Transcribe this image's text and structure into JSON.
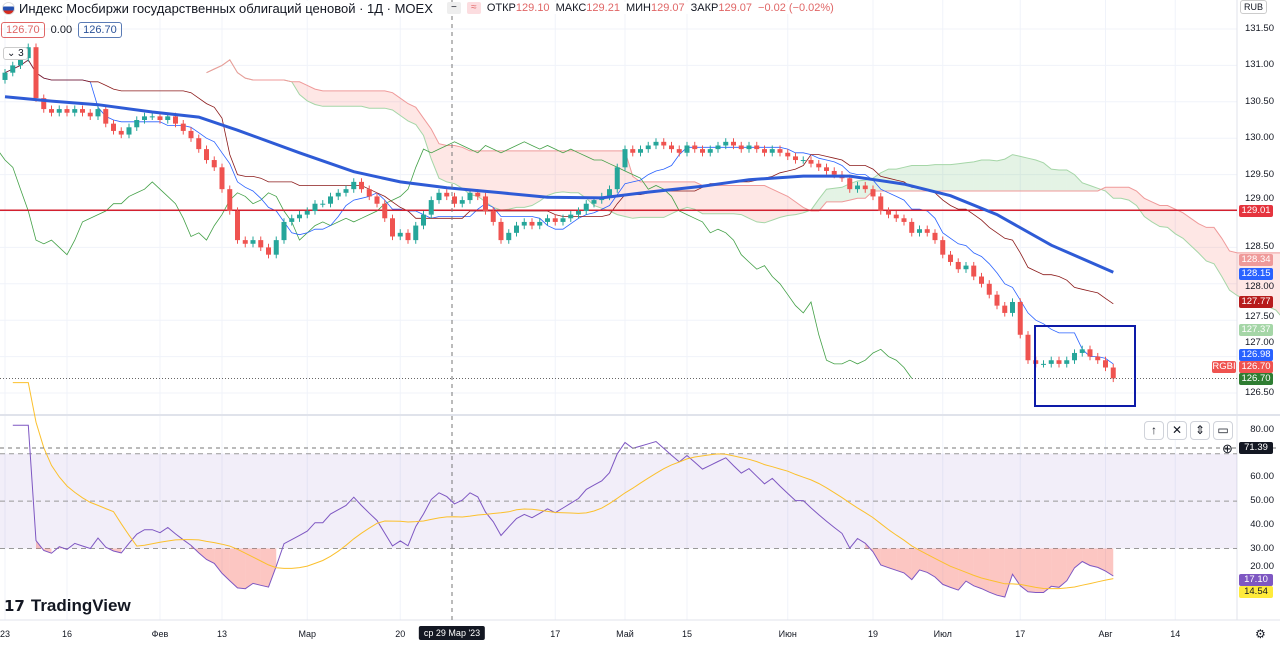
{
  "header": {
    "title": "Индекс Мосбиржи государственных облигаций ценовой · 1Д · MOEX",
    "ohlc": [
      {
        "k": "ОТКР",
        "v": "129.10"
      },
      {
        "k": "МАКС",
        "v": "129.21"
      },
      {
        "k": "МИН",
        "v": "129.07"
      },
      {
        "k": "ЗАКР",
        "v": "129.07"
      }
    ],
    "change": "−0.02 (−0.02%)",
    "sell": "126.70",
    "spread": "0.00",
    "buy": "126.70",
    "indicators_count": "3",
    "currency": "RUB"
  },
  "colors": {
    "up": "#26a69a",
    "down": "#ef5350",
    "ma": "#2e5bd6",
    "hline": "#d3202f",
    "box": "#0d1aa8"
  },
  "chart_data": {
    "type": "candlestick",
    "symbol": "RGBI",
    "ylim": [
      126.3,
      131.6
    ],
    "y_ticks": [
      "131.50",
      "131.00",
      "130.50",
      "130.00",
      "129.50",
      "129.00",
      "128.50",
      "128.00",
      "127.50",
      "127.00",
      "126.50"
    ],
    "y_tick_values": [
      131.5,
      131.0,
      130.5,
      130.0,
      129.5,
      129.0,
      128.5,
      128.0,
      127.5,
      127.0,
      126.5
    ],
    "x_labels": [
      {
        "i": 0,
        "t": "23"
      },
      {
        "i": 8,
        "t": "16"
      },
      {
        "i": 20,
        "t": "Фев"
      },
      {
        "i": 28,
        "t": "13"
      },
      {
        "i": 39,
        "t": "Мар"
      },
      {
        "i": 51,
        "t": "20"
      },
      {
        "i": 71,
        "t": "17"
      },
      {
        "i": 80,
        "t": "Май"
      },
      {
        "i": 88,
        "t": "15"
      },
      {
        "i": 101,
        "t": "Июн"
      },
      {
        "i": 112,
        "t": "19"
      },
      {
        "i": 121,
        "t": "Июл"
      },
      {
        "i": 131,
        "t": "17"
      },
      {
        "i": 142,
        "t": "Авг"
      },
      {
        "i": 151,
        "t": "14"
      }
    ],
    "crosshair_label": "ср 29 Мар '23",
    "closes": [
      130.9,
      131.0,
      131.1,
      131.25,
      130.55,
      130.4,
      130.35,
      130.4,
      130.35,
      130.4,
      130.35,
      130.3,
      130.4,
      130.2,
      130.1,
      130.05,
      130.15,
      130.25,
      130.3,
      130.3,
      130.25,
      130.3,
      130.2,
      130.1,
      130.0,
      129.85,
      129.7,
      129.6,
      129.3,
      129.0,
      128.6,
      128.55,
      128.6,
      128.5,
      128.4,
      128.6,
      128.85,
      128.9,
      128.95,
      129.0,
      129.1,
      129.1,
      129.2,
      129.25,
      129.3,
      129.4,
      129.3,
      129.2,
      129.1,
      128.9,
      128.65,
      128.7,
      128.6,
      128.8,
      128.95,
      129.15,
      129.25,
      129.2,
      129.1,
      129.15,
      129.25,
      129.2,
      129.0,
      128.85,
      128.6,
      128.7,
      128.8,
      128.85,
      128.8,
      128.85,
      128.9,
      128.85,
      128.9,
      128.95,
      129.0,
      129.1,
      129.15,
      129.2,
      129.3,
      129.6,
      129.85,
      129.8,
      129.85,
      129.9,
      129.95,
      129.9,
      129.85,
      129.8,
      129.9,
      129.85,
      129.8,
      129.85,
      129.9,
      129.95,
      129.9,
      129.85,
      129.9,
      129.85,
      129.8,
      129.85,
      129.8,
      129.75,
      129.7,
      129.7,
      129.65,
      129.6,
      129.55,
      129.5,
      129.45,
      129.3,
      129.35,
      129.3,
      129.2,
      129.0,
      128.95,
      128.9,
      128.85,
      128.7,
      128.75,
      128.7,
      128.6,
      128.4,
      128.3,
      128.2,
      128.25,
      128.1,
      128.0,
      127.85,
      127.7,
      127.6,
      127.75,
      127.3,
      126.95,
      126.9,
      126.9,
      126.95,
      126.9,
      126.95,
      127.05,
      127.1,
      127.0,
      126.95,
      126.85,
      126.7
    ],
    "ma_line": [
      [
        0,
        130.57
      ],
      [
        6,
        130.51
      ],
      [
        12,
        130.46
      ],
      [
        19,
        130.36
      ],
      [
        25,
        130.29
      ],
      [
        30,
        130.11
      ],
      [
        38,
        129.8
      ],
      [
        45,
        129.54
      ],
      [
        51,
        129.4
      ],
      [
        57,
        129.32
      ],
      [
        64,
        129.25
      ],
      [
        70,
        129.19
      ],
      [
        77,
        129.18
      ],
      [
        83,
        129.26
      ],
      [
        90,
        129.34
      ],
      [
        96,
        129.43
      ],
      [
        103,
        129.48
      ],
      [
        109,
        129.48
      ],
      [
        116,
        129.37
      ],
      [
        122,
        129.21
      ],
      [
        128,
        128.95
      ],
      [
        135,
        128.53
      ],
      [
        143,
        128.16
      ]
    ],
    "horizontal_line": 129.01,
    "price_tags": [
      {
        "v": "129.01",
        "c": "#e5343e"
      },
      {
        "v": "128.34",
        "c": "#ef9a9a",
        "y": 128.34
      },
      {
        "v": "128.15",
        "c": "#2962ff"
      },
      {
        "v": "127.77",
        "c": "#b71c1c"
      },
      {
        "v": "127.37",
        "c": "#a5d6a7"
      },
      {
        "v": "126.98",
        "c": "#2962ff"
      },
      {
        "v": "126.70",
        "c": "#ef5350"
      },
      {
        "v": "126.70",
        "c": "#2e7d32"
      }
    ],
    "rsi": {
      "ticks": [
        "80.00",
        "60.00",
        "50.00",
        "40.00",
        "30.00",
        "20.00"
      ],
      "tick_values": [
        80,
        60,
        50,
        40,
        30,
        20
      ],
      "levels": [
        70,
        50,
        30
      ],
      "tags": [
        {
          "v": "71.39",
          "c": "#131722"
        },
        {
          "v": "17.10",
          "c": "#7e57c2"
        },
        {
          "v": "14.54",
          "c": "#ffeb3b"
        }
      ]
    }
  },
  "toolbar": {
    "brand": "TradingView"
  }
}
